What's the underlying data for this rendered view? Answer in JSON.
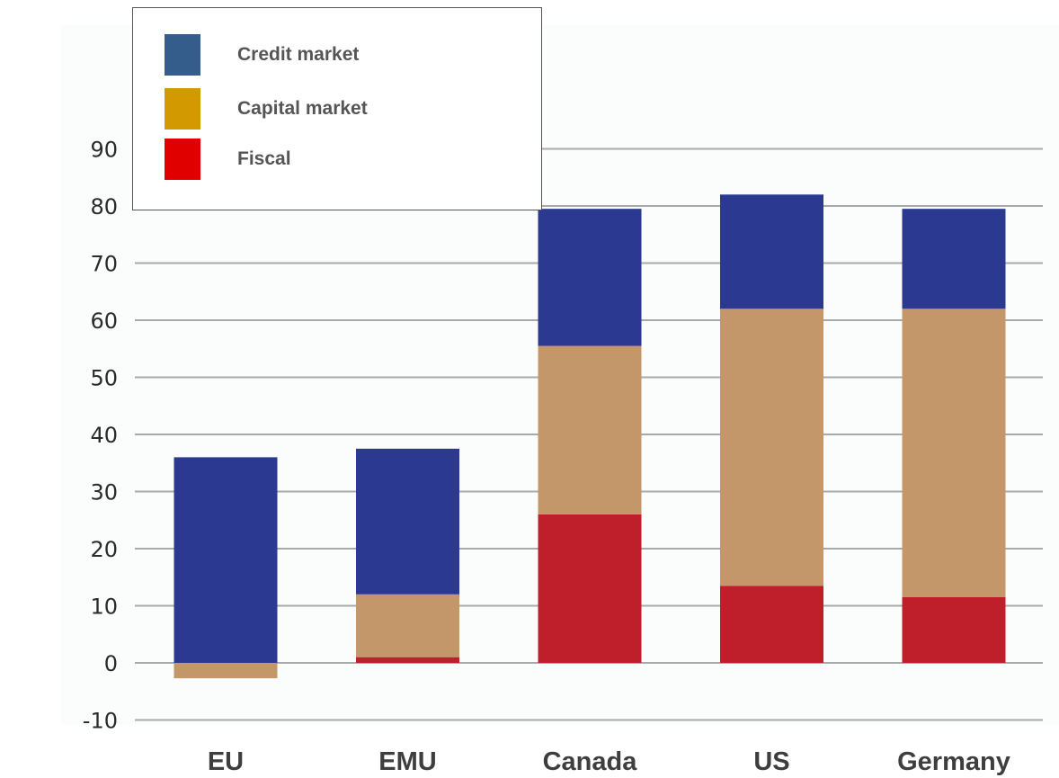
{
  "chart_data": {
    "type": "bar",
    "stacked": true,
    "categories": [
      "EU",
      "EMU",
      "Canada",
      "US",
      "Germany"
    ],
    "series": [
      {
        "name": "Fiscal",
        "color": "#bf1f2a",
        "legend_color": "#e10000",
        "values": [
          0,
          1,
          26,
          13.5,
          11.5
        ]
      },
      {
        "name": "Capital market",
        "color": "#c4976a",
        "legend_color": "#d29a00",
        "values": [
          -2.7,
          11,
          29.5,
          48.5,
          50.5
        ]
      },
      {
        "name": "Credit market",
        "color": "#2b3990",
        "legend_color": "#355d8c",
        "values": [
          36,
          25.5,
          24,
          20,
          17.5
        ]
      }
    ],
    "yticks": [
      90,
      80,
      70,
      60,
      50,
      40,
      30,
      20,
      10,
      0,
      -10
    ],
    "ylim": [
      -10,
      90
    ],
    "grid": true,
    "legend_position": "top-left",
    "legend_order": [
      "Credit market",
      "Capital market",
      "Fiscal"
    ]
  }
}
